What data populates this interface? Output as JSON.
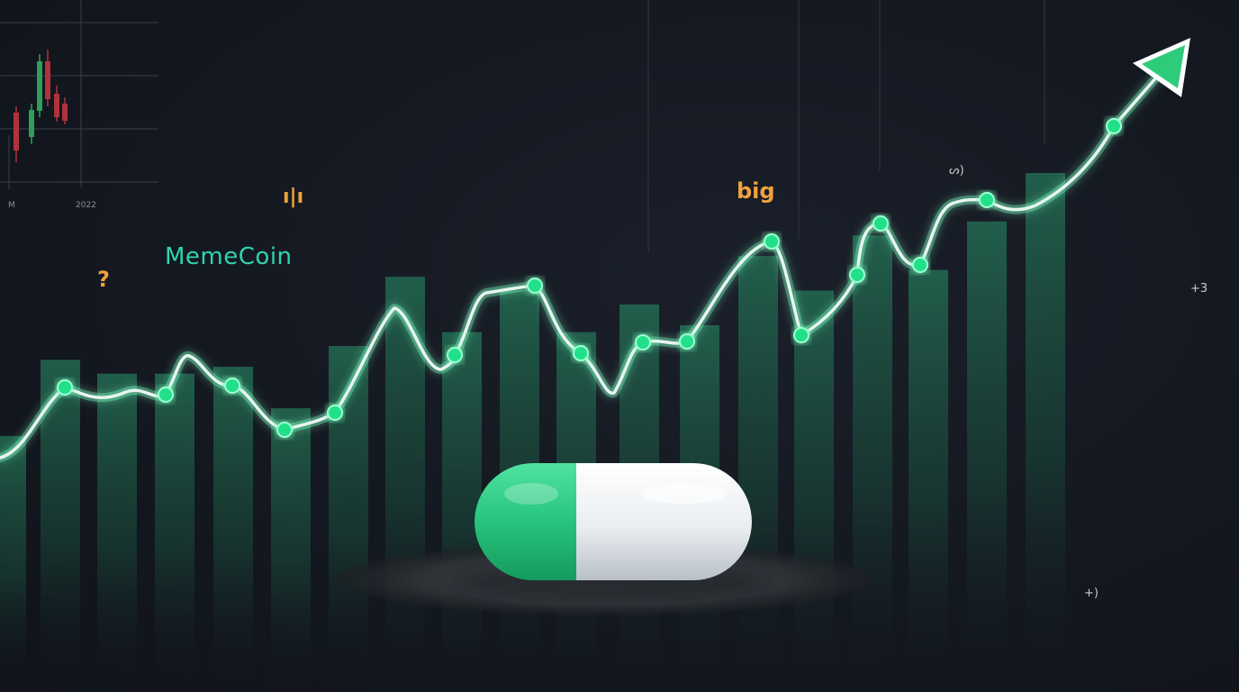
{
  "labels": {
    "brand": "MemeCoin",
    "big": "big",
    "question": "?",
    "glyph_a": "ı|ı",
    "glyph_b": "ᔕ)",
    "glyph_c": "+3",
    "glyph_d": "+)",
    "mini_chart_m": "M",
    "mini_chart_year": "2022"
  },
  "colors": {
    "background": "#141820",
    "bar": "#1f5a47",
    "line_glow": "#7dffc6",
    "line_core": "#e8f5ef",
    "point": "#22e08a",
    "arrow": "#2ecc7a",
    "pill_green": "#27c47d",
    "pill_white": "#eef1f4",
    "brand_text": "#2fd3b0",
    "accent_text": "#f0a23a",
    "candle_up": "#2f9e5a",
    "candle_down": "#b0323c"
  },
  "bar_levels": [
    0.37,
    0.48,
    0.46,
    0.46,
    0.47,
    0.41,
    0.5,
    0.6,
    0.52,
    0.58,
    0.52,
    0.56,
    0.53,
    0.63,
    0.58,
    0.66,
    0.61,
    0.68,
    0.75
  ]
}
